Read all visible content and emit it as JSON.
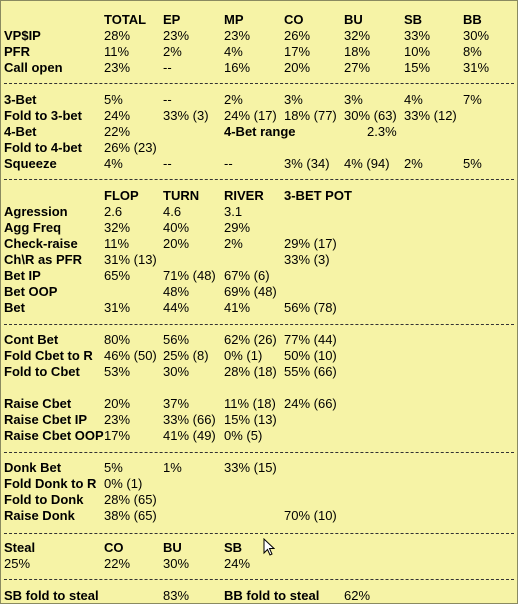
{
  "rows": [
    [
      "",
      "TOTAL",
      "EP",
      "MP",
      "CO",
      "BU",
      "SB",
      "BB"
    ],
    [
      "VP$IP",
      "28%",
      "23%",
      "23%",
      "26%",
      "32%",
      "33%",
      "30%"
    ],
    [
      "PFR",
      "11%",
      "2%",
      "4%",
      "17%",
      "18%",
      "10%",
      "8%"
    ],
    [
      "Call open",
      "23%",
      "--",
      "16%",
      "20%",
      "27%",
      "15%",
      "31%"
    ],
    [
      "3-Bet",
      "5%",
      "--",
      "2%",
      "3%",
      "3%",
      "4%",
      "7%"
    ],
    [
      "Fold to 3-bet",
      "24%",
      "33%  (3)",
      "24%  (17)",
      "18%  (77)",
      "30%  (63)",
      "33%  (12)",
      ""
    ],
    [
      "4-Bet",
      "22%",
      "",
      "4-Bet range",
      "",
      "2.3%",
      "",
      ""
    ],
    [
      "Fold to 4-bet",
      "26%  (23)",
      "",
      "",
      "",
      "",
      "",
      ""
    ],
    [
      "Squeeze",
      "4%",
      "--",
      "--",
      "3%  (34)",
      "4%  (94)",
      "2%",
      "5%"
    ],
    [
      "",
      "FLOP",
      "TURN",
      "RIVER",
      "3-BET POT"
    ],
    [
      "Agression",
      "2.6",
      "4.6",
      "3.1",
      ""
    ],
    [
      "Agg Freq",
      "32%",
      "40%",
      "29%",
      ""
    ],
    [
      "Check-raise",
      "11%",
      "20%",
      "2%",
      "29%  (17)"
    ],
    [
      "Ch\\R as PFR",
      "31%  (13)",
      "",
      "",
      "33%  (3)"
    ],
    [
      "Bet IP",
      "65%",
      "71%  (48)",
      "67%  (6)",
      ""
    ],
    [
      "Bet OOP",
      "",
      "48%",
      "69%  (48)",
      ""
    ],
    [
      "Bet",
      "31%",
      "44%",
      "41%",
      "56%  (78)"
    ],
    [
      "Cont Bet",
      "80%",
      "56%",
      "62%  (26)",
      "77%  (44)"
    ],
    [
      "Fold Cbet to R",
      "46%  (50)",
      "25%  (8)",
      "0%   (1)",
      "50%  (10)"
    ],
    [
      "Fold to Cbet",
      "53%",
      "30%",
      "28%  (18)",
      "55%  (66)"
    ],
    [
      "Raise Cbet",
      "20%",
      "37%",
      "11%  (18)",
      "24%  (66)"
    ],
    [
      "Raise Cbet IP",
      "23%",
      "33%  (66)",
      "15%  (13)",
      ""
    ],
    [
      "Raise Cbet OOP",
      "17%",
      "41%  (49)",
      "0%   (5)",
      ""
    ],
    [
      "Donk Bet",
      "5%",
      "1%",
      "33%  (15)",
      ""
    ],
    [
      "Fold Donk to R",
      "0%   (1)",
      "",
      "",
      ""
    ],
    [
      "Fold to Donk",
      "28%  (65)",
      "",
      "",
      ""
    ],
    [
      "Raise Donk",
      "38%  (65)",
      "",
      "",
      "70%  (10)"
    ],
    [
      "Steal",
      "CO",
      "BU",
      "SB"
    ],
    [
      "25%",
      "22%",
      "30%",
      "24%"
    ],
    [
      "SB fold to steal",
      "",
      "83%",
      "BB fold to steal",
      "62%"
    ]
  ],
  "colors": {
    "background": "#f6f3a6",
    "text": "#000000",
    "separator": "#333333"
  },
  "icons": {
    "cursor": "mouse-pointer-icon"
  }
}
